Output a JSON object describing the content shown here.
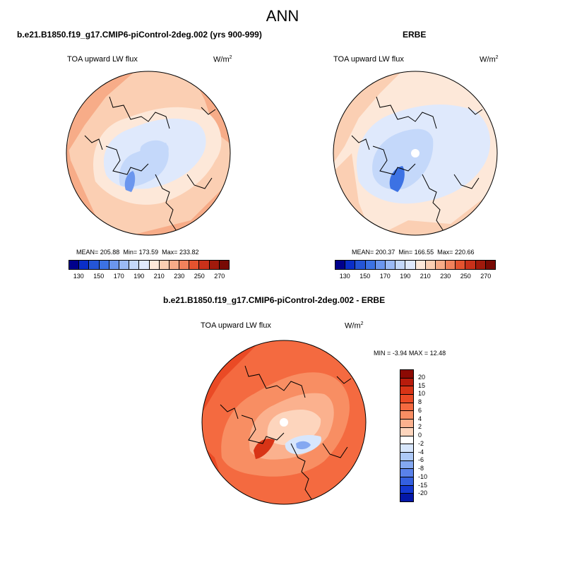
{
  "page": {
    "title": "ANN"
  },
  "panels": [
    {
      "title": "b.e21.B1850.f19_g17.CMIP6-piControl-2deg.002 (yrs 900-999)",
      "variable": "TOA upward LW flux",
      "units_base": "W/m",
      "units_exp": "2",
      "stats": {
        "mean_label": "MEAN=",
        "mean": "205.88",
        "min_label": "Min=",
        "min": "173.59",
        "max_label": "Max=",
        "max": "233.82"
      },
      "colorbar": {
        "orientation": "horizontal",
        "labels": [
          "130",
          "150",
          "170",
          "190",
          "210",
          "230",
          "250",
          "270"
        ],
        "colors": [
          "#00008c",
          "#0a2ec8",
          "#2455d6",
          "#3c72e4",
          "#6b96ee",
          "#9bbaf5",
          "#c4d8fa",
          "#dfe9fc",
          "#fde8d9",
          "#fbcfb3",
          "#f7ac88",
          "#f1825c",
          "#e4532f",
          "#c9311a",
          "#a11a0c",
          "#780a04"
        ]
      }
    },
    {
      "title": "ERBE",
      "variable": "TOA upward LW flux",
      "units_base": "W/m",
      "units_exp": "2",
      "stats": {
        "mean_label": "MEAN=",
        "mean": "200.37",
        "min_label": "Min=",
        "min": "166.55",
        "max_label": "Max=",
        "max": "220.66"
      },
      "colorbar": {
        "orientation": "horizontal",
        "labels": [
          "130",
          "150",
          "170",
          "190",
          "210",
          "230",
          "250",
          "270"
        ],
        "colors": [
          "#00008c",
          "#0a2ec8",
          "#2455d6",
          "#3c72e4",
          "#6b96ee",
          "#9bbaf5",
          "#c4d8fa",
          "#dfe9fc",
          "#fde8d9",
          "#fbcfb3",
          "#f7ac88",
          "#f1825c",
          "#e4532f",
          "#c9311a",
          "#a11a0c",
          "#780a04"
        ]
      }
    },
    {
      "title": "b.e21.B1850.f19_g17.CMIP6-piControl-2deg.002 - ERBE",
      "variable": "TOA upward LW flux",
      "units_base": "W/m",
      "units_exp": "2",
      "stats": {
        "min_label": "MIN =",
        "min": "-3.94",
        "max_label": "MAX =",
        "max": "12.48"
      },
      "colorbar": {
        "orientation": "vertical",
        "labels": [
          "20",
          "15",
          "10",
          "8",
          "6",
          "4",
          "2",
          "0",
          "-2",
          "-4",
          "-6",
          "-8",
          "-10",
          "-15",
          "-20"
        ],
        "colors": [
          "#8c0a04",
          "#b81c0c",
          "#d83416",
          "#ea4a25",
          "#f46a40",
          "#f88e63",
          "#fbb18e",
          "#fdd5bd",
          "#ffffff",
          "#d7e6fc",
          "#adc9f7",
          "#84a8f1",
          "#5a82ea",
          "#3460e0",
          "#1439d2",
          "#0418a8"
        ]
      }
    }
  ],
  "chart_data": [
    {
      "type": "heatmap",
      "projection": "north polar stereographic",
      "title": "b.e21.B1850.f19_g17.CMIP6-piControl-2deg.002 (yrs 900-999)",
      "variable": "TOA upward LW flux",
      "units": "W/m2",
      "mean": 205.88,
      "min": 173.59,
      "max": 233.82,
      "contour_levels": [
        130,
        140,
        150,
        160,
        170,
        180,
        190,
        200,
        210,
        220,
        230,
        240,
        250,
        260,
        270
      ]
    },
    {
      "type": "heatmap",
      "projection": "north polar stereographic",
      "title": "ERBE",
      "variable": "TOA upward LW flux",
      "units": "W/m2",
      "mean": 200.37,
      "min": 166.55,
      "max": 220.66,
      "contour_levels": [
        130,
        140,
        150,
        160,
        170,
        180,
        190,
        200,
        210,
        220,
        230,
        240,
        250,
        260,
        270
      ]
    },
    {
      "type": "heatmap",
      "projection": "north polar stereographic",
      "title": "b.e21.B1850.f19_g17.CMIP6-piControl-2deg.002 - ERBE",
      "variable": "TOA upward LW flux",
      "units": "W/m2",
      "min": -3.94,
      "max": 12.48,
      "contour_levels": [
        -20,
        -15,
        -10,
        -8,
        -6,
        -4,
        -2,
        0,
        2,
        4,
        6,
        8,
        10,
        15,
        20
      ]
    }
  ]
}
